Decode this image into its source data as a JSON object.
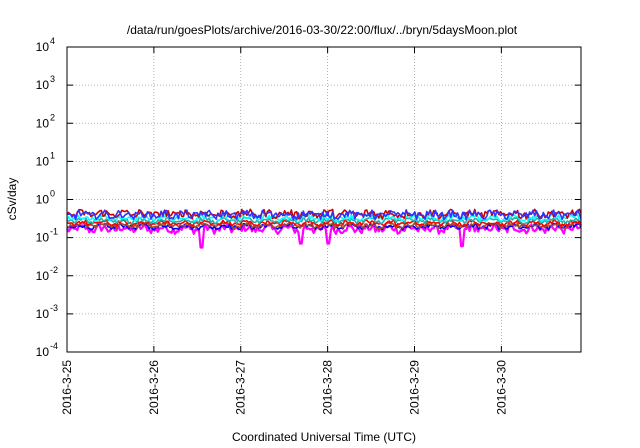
{
  "chart_data": {
    "type": "line",
    "title": "/data/run/goesPlots/archive/2016-03-30/22:00/flux/../bryn/5daysMoon.plot",
    "xlabel": "Coordinated Universal Time (UTC)",
    "ylabel": "cSv/day",
    "y_scale": "log",
    "ylim": [
      0.0001,
      10000
    ],
    "xlim": [
      "2016-03-25",
      "2016-03-30T22:00"
    ],
    "x_ticks": [
      "2016-3-25",
      "2016-3-26",
      "2016-3-27",
      "2016-3-28",
      "2016-3-29",
      "2016-3-30"
    ],
    "y_ticks": [
      {
        "value": 0.0001,
        "base": "10",
        "exp": "-4"
      },
      {
        "value": 0.001,
        "base": "10",
        "exp": "-3"
      },
      {
        "value": 0.01,
        "base": "10",
        "exp": "-2"
      },
      {
        "value": 0.1,
        "base": "10",
        "exp": "-1"
      },
      {
        "value": 1,
        "base": "10",
        "exp": "0"
      },
      {
        "value": 10,
        "base": "10",
        "exp": "1"
      },
      {
        "value": 100,
        "base": "10",
        "exp": "2"
      },
      {
        "value": 1000,
        "base": "10",
        "exp": "3"
      },
      {
        "value": 10000,
        "base": "10",
        "exp": "4"
      }
    ],
    "grid": true,
    "legend": "none",
    "series": [
      {
        "color": "#ff00ff",
        "baseline": 0.17,
        "noise": 0.22,
        "spikes": [
          {
            "t": 1.55,
            "v": 0.055
          },
          {
            "t": 2.7,
            "v": 0.07
          },
          {
            "t": 4.55,
            "v": 0.06
          },
          {
            "t": 3.0,
            "v": 0.07
          }
        ]
      },
      {
        "color": "#0000ff",
        "baseline": 0.195,
        "noise": 0.12,
        "spikes": []
      },
      {
        "color": "#a0522d",
        "baseline": 0.21,
        "noise": 0.12,
        "spikes": []
      },
      {
        "color": "#ff0000",
        "baseline": 0.24,
        "noise": 0.12,
        "spikes": []
      },
      {
        "color": "#20b2aa",
        "baseline": 0.28,
        "noise": 0.12,
        "spikes": []
      },
      {
        "color": "#00ffff",
        "baseline": 0.33,
        "noise": 0.15,
        "spikes": []
      },
      {
        "color": "#cc0000",
        "baseline": 0.42,
        "noise": 0.22,
        "spikes": []
      },
      {
        "color": "#3333ff",
        "baseline": 0.4,
        "noise": 0.22,
        "spikes": []
      }
    ]
  }
}
